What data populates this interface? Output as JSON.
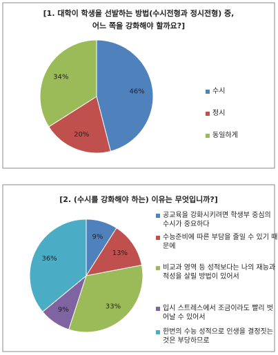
{
  "chart_data": [
    {
      "type": "pie",
      "title": [
        "[1. 대학이 학생을 선발하는 방법(수시전형과 정시전형) 중,",
        "어느 쪽을 강화해야 할까요?]"
      ],
      "categories": [
        "수시",
        "정시",
        "동일하게"
      ],
      "values": [
        46,
        20,
        34
      ],
      "value_labels": [
        "46%",
        "20%",
        "34%"
      ],
      "colors": [
        "#4f81bd",
        "#c0504d",
        "#9bbb59"
      ]
    },
    {
      "type": "pie",
      "title": [
        "[2. (수시를 강화해야 하는) 이유는 무엇입니까?]"
      ],
      "categories": [
        "공교육을 강화시키려면 학생부 중심의 수시가 중요하다",
        "수능준비에 따른 부담을 줄일 수 있기 때문에",
        "비교과 영역 등 성적보다는 나의 재능과 적성을 살릴 방법이 있어서",
        "입시 스트레스에서 조금이라도 빨리 벗어날 수 있어서",
        "한번의 수능 성적으로 인생을 결정짓는 것은 부당하므로"
      ],
      "values": [
        9,
        13,
        33,
        9,
        36
      ],
      "value_labels": [
        "9%",
        "13%",
        "33%",
        "9%",
        "36%"
      ],
      "colors": [
        "#4f81bd",
        "#c0504d",
        "#9bbb59",
        "#8064a2",
        "#4bacc6"
      ]
    }
  ]
}
